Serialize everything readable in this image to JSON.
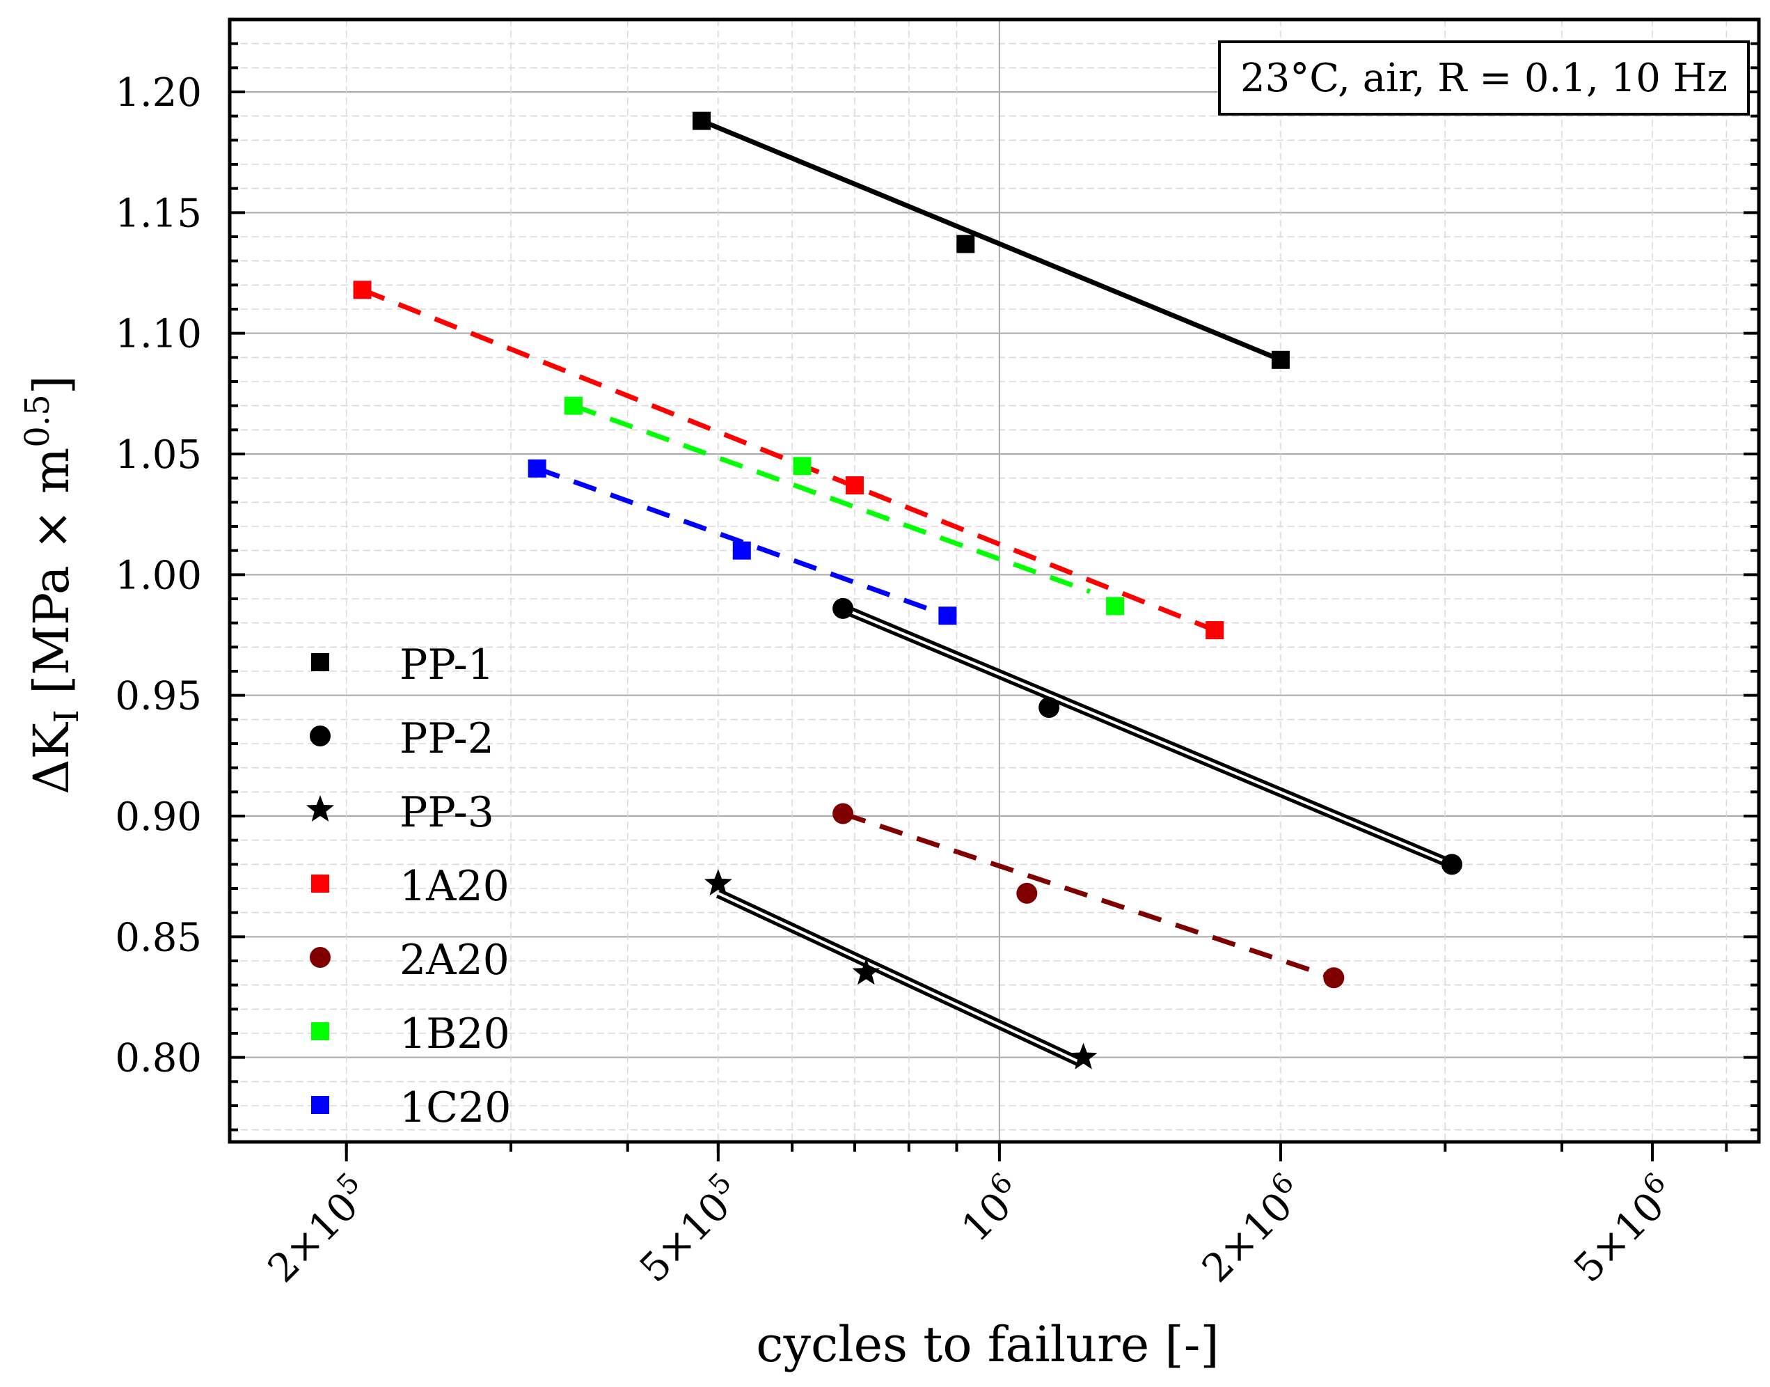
{
  "chart_data": {
    "type": "scatter",
    "title": "",
    "xlabel": "cycles to failure [-]",
    "ylabel": "ΔK",
    "ylabel_sub": "I",
    "ylabel_rest": " [MPa × m",
    "ylabel_sup": "0.5",
    "ylabel_end": "]",
    "xscale": "log",
    "xlim": [
      150000,
      6500000
    ],
    "ylim": [
      0.765,
      1.23
    ],
    "y_ticks": [
      0.8,
      0.85,
      0.9,
      0.95,
      1.0,
      1.05,
      1.1,
      1.15,
      1.2
    ],
    "y_tick_labels": [
      "0.80",
      "0.85",
      "0.90",
      "0.95",
      "1.00",
      "1.05",
      "1.10",
      "1.15",
      "1.20"
    ],
    "x_ticks": [
      {
        "value": 200000,
        "mant": "2×10",
        "exp": "5"
      },
      {
        "value": 500000,
        "mant": "5×10",
        "exp": "5"
      },
      {
        "value": 1000000,
        "mant": "10",
        "exp": "6"
      },
      {
        "value": 2000000,
        "mant": "2×10",
        "exp": "6"
      },
      {
        "value": 5000000,
        "mant": "5×10",
        "exp": "6"
      }
    ],
    "annotation": "23°C, air, R = 0.1, 10 Hz",
    "grid": true,
    "legend_position": "left",
    "series": [
      {
        "name": "PP-1",
        "marker": "square",
        "color": "#000000",
        "line": "solid",
        "points": [
          {
            "x": 480000,
            "y": 1.188
          },
          {
            "x": 920000,
            "y": 1.137
          },
          {
            "x": 2000000,
            "y": 1.089
          }
        ],
        "fit": [
          {
            "x": 480000,
            "y": 1.188
          },
          {
            "x": 2000000,
            "y": 1.089
          }
        ]
      },
      {
        "name": "PP-2",
        "marker": "circle",
        "color": "#000000",
        "line": "double",
        "points": [
          {
            "x": 680000,
            "y": 0.986
          },
          {
            "x": 1130000,
            "y": 0.945
          },
          {
            "x": 3050000,
            "y": 0.88
          }
        ],
        "fit": [
          {
            "x": 680000,
            "y": 0.986
          },
          {
            "x": 3050000,
            "y": 0.88
          }
        ]
      },
      {
        "name": "PP-3",
        "marker": "star",
        "color": "#000000",
        "line": "double",
        "points": [
          {
            "x": 500000,
            "y": 0.872
          },
          {
            "x": 720000,
            "y": 0.835
          },
          {
            "x": 1230000,
            "y": 0.8
          }
        ],
        "fit": [
          {
            "x": 500000,
            "y": 0.868
          },
          {
            "x": 1220000,
            "y": 0.798
          }
        ]
      },
      {
        "name": "1A20",
        "marker": "square",
        "color": "#ff0000",
        "line": "dashed",
        "points": [
          {
            "x": 208000,
            "y": 1.118
          },
          {
            "x": 700000,
            "y": 1.037
          },
          {
            "x": 1700000,
            "y": 0.977
          }
        ],
        "fit": [
          {
            "x": 208000,
            "y": 1.118
          },
          {
            "x": 1700000,
            "y": 0.977
          }
        ]
      },
      {
        "name": "2A20",
        "marker": "circle",
        "color": "#800000",
        "line": "dashed",
        "points": [
          {
            "x": 680000,
            "y": 0.901
          },
          {
            "x": 1070000,
            "y": 0.868
          },
          {
            "x": 2280000,
            "y": 0.833
          }
        ],
        "fit": [
          {
            "x": 680000,
            "y": 0.901
          },
          {
            "x": 2280000,
            "y": 0.833
          }
        ]
      },
      {
        "name": "1B20",
        "marker": "square",
        "color": "#00ff00",
        "line": "dashed",
        "points": [
          {
            "x": 350000,
            "y": 1.07
          },
          {
            "x": 615000,
            "y": 1.045
          },
          {
            "x": 1330000,
            "y": 0.987
          }
        ],
        "fit": [
          {
            "x": 350000,
            "y": 1.07
          },
          {
            "x": 1250000,
            "y": 0.993
          }
        ]
      },
      {
        "name": "1C20",
        "marker": "square",
        "color": "#0000ff",
        "line": "dashed",
        "points": [
          {
            "x": 320000,
            "y": 1.044
          },
          {
            "x": 530000,
            "y": 1.01
          },
          {
            "x": 880000,
            "y": 0.983
          }
        ],
        "fit": [
          {
            "x": 320000,
            "y": 1.044
          },
          {
            "x": 880000,
            "y": 0.983
          }
        ]
      }
    ]
  }
}
